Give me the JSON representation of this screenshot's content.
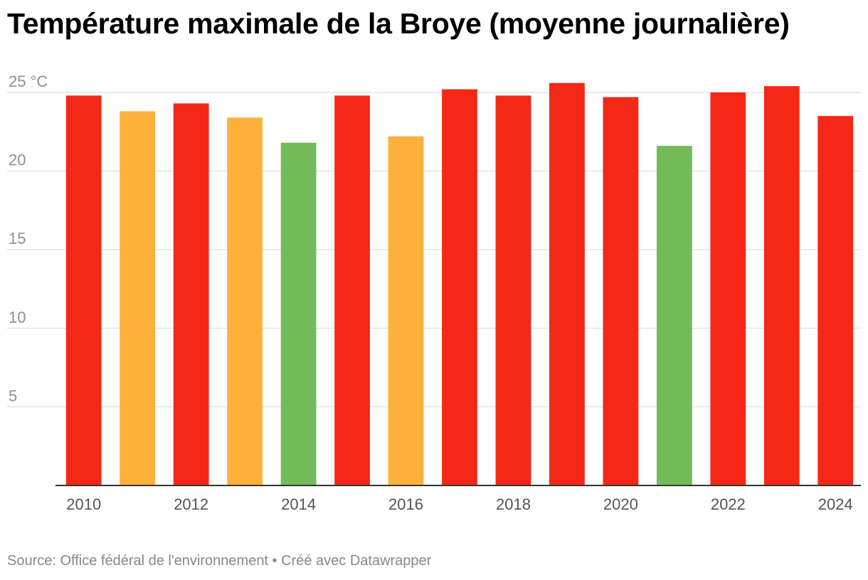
{
  "chart_data": {
    "type": "bar",
    "title": "Température maximale de la Broye (moyenne journalière)",
    "xlabel": "",
    "ylabel": "°C",
    "y_unit_label": "°C",
    "ylim": [
      0,
      25
    ],
    "yticks": [
      5,
      10,
      15,
      20,
      25
    ],
    "categories": [
      "2010",
      "2011",
      "2012",
      "2013",
      "2014",
      "2015",
      "2016",
      "2017",
      "2018",
      "2019",
      "2020",
      "2021",
      "2022",
      "2023",
      "2024"
    ],
    "x_tick_labels": [
      "2010",
      "",
      "2012",
      "",
      "2014",
      "",
      "2016",
      "",
      "2018",
      "",
      "2020",
      "",
      "2022",
      "",
      "2024"
    ],
    "values": [
      24.8,
      23.8,
      24.3,
      23.4,
      21.8,
      24.8,
      22.2,
      25.2,
      24.8,
      25.6,
      24.7,
      21.6,
      25.0,
      25.4,
      23.5
    ],
    "bar_color_class": [
      "hot",
      "warm",
      "hot",
      "warm",
      "cool",
      "hot",
      "warm",
      "hot",
      "hot",
      "hot",
      "hot",
      "cool",
      "hot",
      "hot",
      "hot"
    ],
    "colors": {
      "hot": "#f52817",
      "warm": "#fdb13b",
      "cool": "#74bc59",
      "grid": "#e4e4e4",
      "baseline": "#333333"
    }
  },
  "footer": {
    "source": "Source: Office fédéral de l'environnement • Créé avec Datawrapper"
  }
}
